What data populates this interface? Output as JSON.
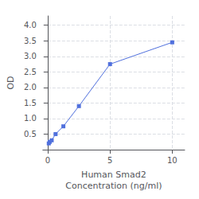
{
  "chart_data": {
    "type": "line",
    "xlabel": "Human Smad2\nConcentration (ng/ml)",
    "ylabel": "OD",
    "x": [
      0.078,
      0.156,
      0.313,
      0.625,
      1.25,
      2.5,
      5.0,
      10.0
    ],
    "values": [
      0.2,
      0.25,
      0.3,
      0.5,
      0.75,
      1.4,
      2.75,
      3.45
    ],
    "marker": "square",
    "xlim": [
      -0.4,
      11.0
    ],
    "ylim": [
      0.0,
      4.3
    ],
    "xticks": [
      0,
      5,
      10
    ],
    "yticks": [
      0.5,
      {
        "value": 1.0,
        "label": "1.0"
      },
      1.5,
      {
        "value": 2.0,
        "label": "2.0"
      },
      2.5,
      {
        "value": 3.0,
        "label": "3.0"
      },
      3.5,
      {
        "value": 4.0,
        "label": "4.0"
      }
    ],
    "grid": true
  }
}
